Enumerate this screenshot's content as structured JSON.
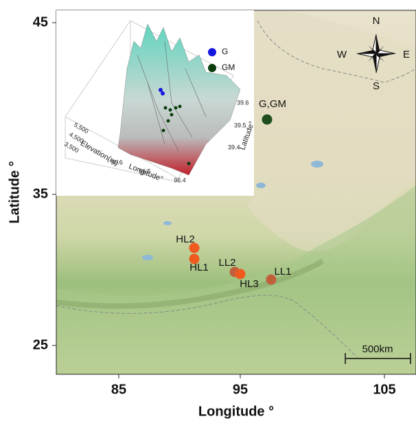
{
  "axes": {
    "x_label": "Longitude °",
    "y_label": "Latitude °",
    "x_ticks": [
      "85",
      "95",
      "105"
    ],
    "y_ticks": [
      "45",
      "35",
      "25"
    ]
  },
  "compass": {
    "n": "N",
    "e": "E",
    "s": "S",
    "w": "W"
  },
  "scale_bar": "500km",
  "sites": [
    {
      "label": "G,GM"
    },
    {
      "label": "HL2"
    },
    {
      "label": "HL1"
    },
    {
      "label": "LL2"
    },
    {
      "label": "HL3"
    },
    {
      "label": "LL1"
    }
  ],
  "inset": {
    "legend": [
      {
        "label": "G"
      },
      {
        "label": "GM"
      }
    ],
    "z_label": "Elevation(m)",
    "x_label": "Longitude°",
    "y_label": "Latitude°",
    "z_ticks": [
      "5,500",
      "4,500",
      "3,500"
    ],
    "x_ticks": [
      "96.6",
      "96.5",
      "96.4"
    ],
    "y_ticks": [
      "39.6",
      "39.5",
      "39.4"
    ]
  }
}
